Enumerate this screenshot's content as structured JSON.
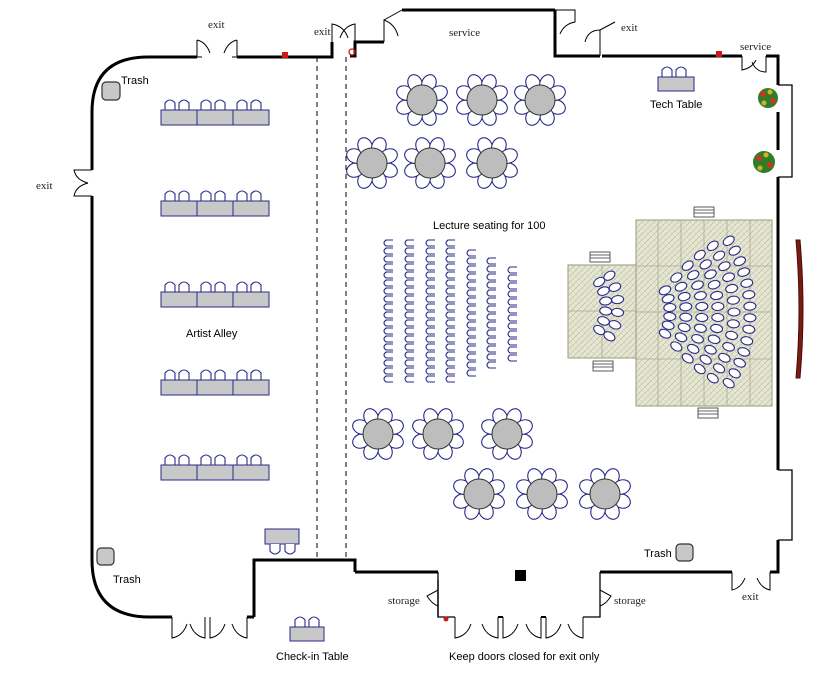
{
  "labels": {
    "exit": "exit",
    "service": "service",
    "storage": "storage",
    "trash": "Trash",
    "tech_table": "Tech Table",
    "lecture": "Lecture seating for 100",
    "artist_alley": "Artist Alley",
    "checkin": "Check-in Table",
    "keep_doors": "Keep doors closed for exit only"
  },
  "colors": {
    "wall": "#000000",
    "table_fill": "#c8c8c8",
    "chair_stroke": "#2a2a8a",
    "stage_fill": "#e4e4d2",
    "curtain": "#7a1a14"
  },
  "icons": [
    "trash-icon",
    "plant-icon",
    "stair-icon",
    "fire-extinguisher-icon",
    "post-icon"
  ]
}
